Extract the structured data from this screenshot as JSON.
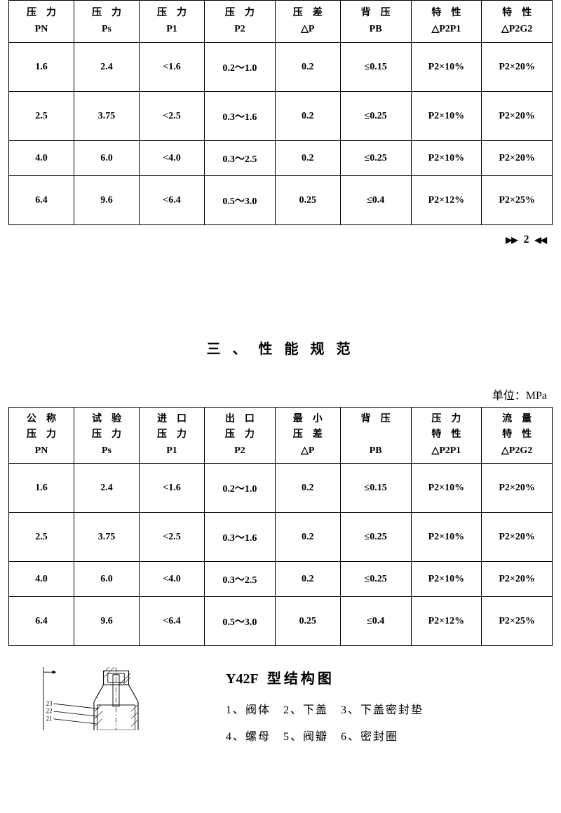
{
  "table1": {
    "headers": [
      {
        "top": "压　力",
        "bot": "PN"
      },
      {
        "top": "压　力",
        "bot": "Ps"
      },
      {
        "top": "压　力",
        "bot": "P1"
      },
      {
        "top": "压　力",
        "bot": "P2"
      },
      {
        "top": "压　差",
        "bot": "△P"
      },
      {
        "top": "背　压",
        "bot": "PB"
      },
      {
        "top": "特　性",
        "bot": "△P2P1"
      },
      {
        "top": "特　性",
        "bot": "△P2G2"
      }
    ],
    "rows": [
      [
        "1.6",
        "2.4",
        "<1.6",
        "0.2～1.0",
        "0.2",
        "≤0.15",
        "P2×10%",
        "P2×20%"
      ],
      [
        "2.5",
        "3.75",
        "<2.5",
        "0.3～1.6",
        "0.2",
        "≤0.25",
        "P2×10%",
        "P2×20%"
      ],
      [
        "4.0",
        "6.0",
        "<4.0",
        "0.3～2.5",
        "0.2",
        "≤0.25",
        "P2×10%",
        "P2×20%"
      ],
      [
        "6.4",
        "9.6",
        "<6.4",
        "0.5～3.0",
        "0.25",
        "≤0.4",
        "P2×12%",
        "P2×25%"
      ]
    ],
    "row_heights": [
      "data-cell",
      "data-cell",
      "data-cell-short",
      "data-cell"
    ]
  },
  "page_number": "2",
  "section_title": "三 、 性 能 规 范",
  "unit_label": "单位：MPa",
  "table2": {
    "headers": [
      {
        "l1": "公　称",
        "l2": "压　力",
        "l3": "PN"
      },
      {
        "l1": "试　验",
        "l2": "压　力",
        "l3": "Ps"
      },
      {
        "l1": "进　口",
        "l2": "压　力",
        "l3": "P1"
      },
      {
        "l1": "出　口",
        "l2": "压　力",
        "l3": "P2"
      },
      {
        "l1": "最　小",
        "l2": "压　差",
        "l3": "△P"
      },
      {
        "l1": "背　压",
        "l2": "",
        "l3": "PB"
      },
      {
        "l1": "压　力",
        "l2": "特　性",
        "l3": "△P2P1"
      },
      {
        "l1": "流　量",
        "l2": "特　性",
        "l3": "△P2G2"
      }
    ],
    "rows": [
      [
        "1.6",
        "2.4",
        "<1.6",
        "0.2～1.0",
        "0.2",
        "≤0.15",
        "P2×10%",
        "P2×20%"
      ],
      [
        "2.5",
        "3.75",
        "<2.5",
        "0.3～1.6",
        "0.2",
        "≤0.25",
        "P2×10%",
        "P2×20%"
      ],
      [
        "4.0",
        "6.0",
        "<4.0",
        "0.3～2.5",
        "0.2",
        "≤0.25",
        "P2×10%",
        "P2×20%"
      ],
      [
        "6.4",
        "9.6",
        "<6.4",
        "0.5～3.0",
        "0.25",
        "≤0.4",
        "P2×12%",
        "P2×25%"
      ]
    ],
    "row_heights": [
      "data-cell",
      "data-cell",
      "data-cell-short",
      "data-cell"
    ]
  },
  "diagram": {
    "labels": [
      "23",
      "22",
      "21"
    ]
  },
  "legend": {
    "title_prefix": "Y42F",
    "title_suffix": "型结构图",
    "line1": "1、阀体　2、下盖　3、下盖密封垫",
    "line2": "4、螺母　5、阀瓣　6、密封圈"
  },
  "col_widths": [
    "12.5%",
    "12.5%",
    "12.5%",
    "12.5%",
    "12.5%",
    "12.5%",
    "12.5%",
    "12.5%"
  ]
}
